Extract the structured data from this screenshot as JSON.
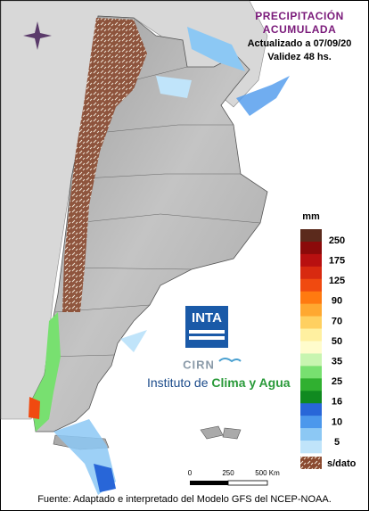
{
  "header": {
    "title_line1": "PRECIPITACIÓN",
    "title_line2": "ACUMULADA",
    "updated": "Actualizado a 07/09/20",
    "validity": "Validez 48 hs."
  },
  "legend": {
    "unit": "mm",
    "colors": [
      "#5b2a1c",
      "#8b0a0a",
      "#b81010",
      "#d82a10",
      "#f04a10",
      "#ff7a10",
      "#ffa830",
      "#ffd060",
      "#fff0a0",
      "#fffccc",
      "#c8f5b0",
      "#78e070",
      "#30b030",
      "#108a20",
      "#2866d8",
      "#4c98ec",
      "#8cc8f4",
      "#c0e4fa"
    ],
    "labels": [
      "250",
      "175",
      "125",
      "90",
      "70",
      "50",
      "35",
      "25",
      "16",
      "10",
      "5"
    ],
    "no_data": "s/dato"
  },
  "scale_bar": {
    "labels": [
      "0",
      "250",
      "500 Km"
    ]
  },
  "logo": {
    "inta": "INTA",
    "cirn": "CIRN",
    "institute_prefix": "Instituto de",
    "institute_name": "Clima y Agua"
  },
  "footer": "Fuente: Adaptado e interpretado del Modelo GFS del NCEP-NOAA."
}
